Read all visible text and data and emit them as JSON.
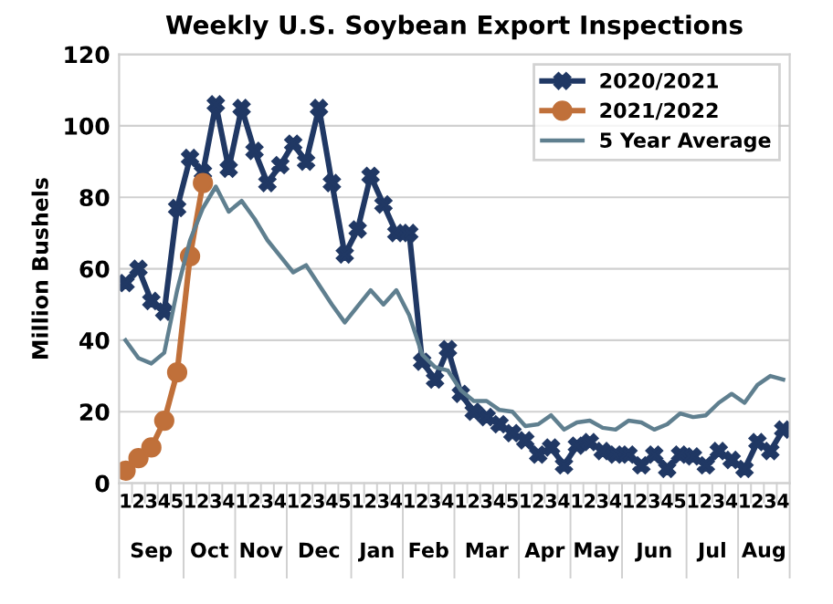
{
  "chart_data": {
    "type": "line",
    "title": "Weekly U.S. Soybean Export Inspections",
    "ylabel": "Million Bushels",
    "categories": [
      "1",
      "2",
      "3",
      "4",
      "5",
      "1",
      "2",
      "3",
      "4",
      "1",
      "2",
      "3",
      "4",
      "1",
      "2",
      "3",
      "4",
      "5",
      "1",
      "2",
      "3",
      "4",
      "1",
      "2",
      "3",
      "4",
      "1",
      "2",
      "3",
      "4",
      "5",
      "1",
      "2",
      "3",
      "4",
      "1",
      "2",
      "3",
      "4",
      "1",
      "2",
      "3",
      "4",
      "5",
      "1",
      "2",
      "3",
      "4",
      "1",
      "2",
      "3",
      "4"
    ],
    "annotations": [
      "Sep",
      "Oct",
      "Nov",
      "Dec",
      "Jan",
      "Feb",
      "Mar",
      "Apr",
      "May",
      "Jun",
      "Jul",
      "Aug"
    ],
    "series": [
      {
        "name": "2020/2021",
        "color": "#203864",
        "marker": "cross",
        "values": [
          56,
          60,
          51,
          48,
          77,
          91,
          87,
          106,
          88,
          105,
          93,
          84,
          89,
          95,
          90,
          105,
          84,
          64,
          71,
          86,
          78,
          70,
          70,
          34,
          29,
          37.5,
          25,
          20,
          18.5,
          16.5,
          14,
          12,
          8,
          10,
          5,
          10.5,
          11.5,
          9,
          8,
          8,
          5,
          8,
          4,
          8,
          7.5,
          5,
          9,
          6.5,
          4,
          11.5,
          9,
          15
        ]
      },
      {
        "name": "2021/2022",
        "color": "#c0703a",
        "marker": "circle",
        "values": [
          3.5,
          7,
          10,
          17.5,
          31,
          63.5,
          84,
          null,
          null,
          null,
          null,
          null,
          null,
          null,
          null,
          null,
          null,
          null,
          null,
          null,
          null,
          null,
          null,
          null,
          null,
          null,
          null,
          null,
          null,
          null,
          null,
          null,
          null,
          null,
          null,
          null,
          null,
          null,
          null,
          null,
          null,
          null,
          null,
          null,
          null,
          null,
          null,
          null,
          null,
          null,
          null,
          null
        ]
      },
      {
        "name": "5 Year Average",
        "color": "#5f7f8f",
        "marker": "none",
        "values": [
          40,
          35,
          33.5,
          36.5,
          54,
          68,
          77,
          83,
          76,
          79,
          74,
          68,
          63.5,
          59,
          61,
          55.5,
          50,
          45,
          49.5,
          54,
          50,
          54,
          47,
          36,
          32.5,
          31.5,
          26,
          23,
          23,
          20.5,
          20,
          16,
          16.5,
          19,
          15,
          17,
          17.5,
          15.5,
          15,
          17.5,
          17,
          15,
          16.5,
          19.5,
          18.5,
          19,
          22.5,
          25,
          22.5,
          27.5,
          30,
          29
        ]
      }
    ],
    "ylim": [
      0,
      120
    ],
    "yticks": [
      0,
      20,
      40,
      60,
      80,
      100,
      120
    ],
    "grid": "y",
    "legend": "top right",
    "line_style": "solid"
  }
}
